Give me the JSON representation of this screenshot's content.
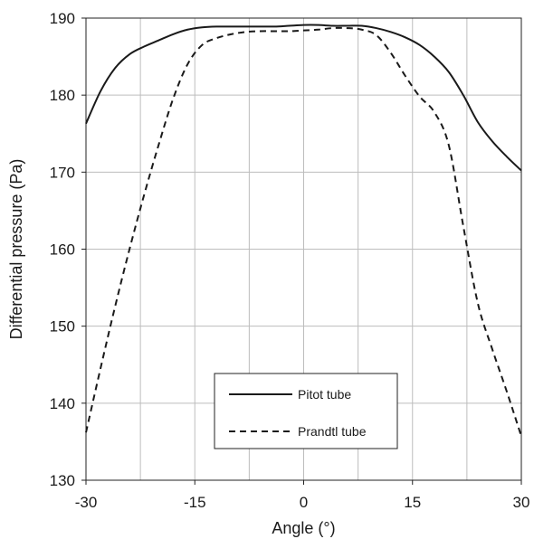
{
  "chart_data": {
    "type": "line",
    "xlabel": "Angle  (°)",
    "ylabel": "Differential pressure (Pa)",
    "xlim": [
      -30,
      30
    ],
    "ylim": [
      130,
      190
    ],
    "x_ticks": [
      "-30",
      "-15",
      "0",
      "15",
      "30"
    ],
    "x_tick_values": [
      -30,
      -15,
      0,
      15,
      30
    ],
    "y_ticks": [
      "130",
      "140",
      "150",
      "160",
      "170",
      "180",
      "190"
    ],
    "y_tick_values": [
      130,
      140,
      150,
      160,
      170,
      180,
      190
    ],
    "grid": true,
    "legend_position": "bottom-center",
    "series": [
      {
        "name": "Pitot tube",
        "style": "solid",
        "color": "#1a1a1a",
        "points": [
          [
            -30,
            176.3
          ],
          [
            -28,
            180.5
          ],
          [
            -26,
            183.5
          ],
          [
            -24,
            185.3
          ],
          [
            -22,
            186.3
          ],
          [
            -20,
            187.1
          ],
          [
            -18,
            187.9
          ],
          [
            -16,
            188.5
          ],
          [
            -14,
            188.8
          ],
          [
            -12,
            188.9
          ],
          [
            -10,
            188.9
          ],
          [
            -8,
            188.9
          ],
          [
            -6,
            188.9
          ],
          [
            -4,
            188.9
          ],
          [
            -2,
            189.0
          ],
          [
            0,
            189.1
          ],
          [
            2,
            189.1
          ],
          [
            4,
            189.0
          ],
          [
            6,
            189.0
          ],
          [
            8,
            189.0
          ],
          [
            10,
            188.7
          ],
          [
            12,
            188.2
          ],
          [
            14,
            187.5
          ],
          [
            16,
            186.5
          ],
          [
            18,
            185.0
          ],
          [
            20,
            183.0
          ],
          [
            22,
            180.0
          ],
          [
            24,
            176.5
          ],
          [
            26,
            174.0
          ],
          [
            28,
            172.0
          ],
          [
            30,
            170.2
          ]
        ]
      },
      {
        "name": "Prandtl tube",
        "style": "dashed",
        "color": "#1a1a1a",
        "points": [
          [
            -30,
            136.2
          ],
          [
            -28,
            144.5
          ],
          [
            -26,
            152.5
          ],
          [
            -24,
            160.0
          ],
          [
            -22,
            167.0
          ],
          [
            -20,
            173.5
          ],
          [
            -18,
            179.5
          ],
          [
            -16,
            184.0
          ],
          [
            -14,
            186.5
          ],
          [
            -12,
            187.4
          ],
          [
            -10,
            187.9
          ],
          [
            -8,
            188.2
          ],
          [
            -6,
            188.3
          ],
          [
            -4,
            188.3
          ],
          [
            -2,
            188.3
          ],
          [
            0,
            188.4
          ],
          [
            2,
            188.5
          ],
          [
            4,
            188.7
          ],
          [
            6,
            188.7
          ],
          [
            8,
            188.5
          ],
          [
            10,
            187.8
          ],
          [
            12,
            185.5
          ],
          [
            14,
            182.5
          ],
          [
            16,
            179.8
          ],
          [
            18,
            177.8
          ],
          [
            20,
            173.5
          ],
          [
            22,
            163.0
          ],
          [
            24,
            153.0
          ],
          [
            26,
            147.0
          ],
          [
            28,
            141.5
          ],
          [
            30,
            135.7
          ]
        ]
      }
    ]
  }
}
